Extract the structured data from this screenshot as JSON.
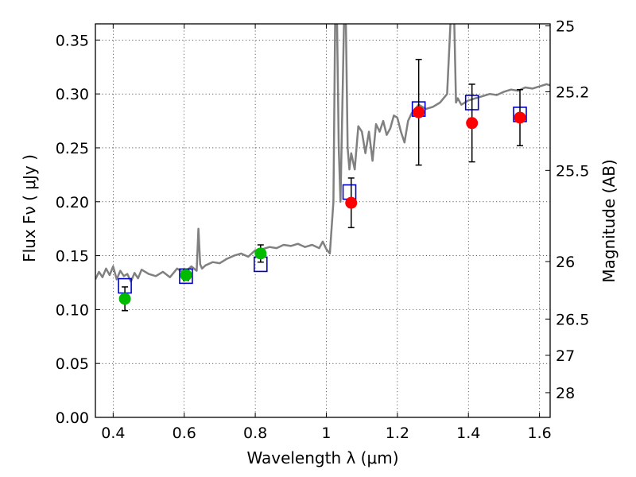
{
  "chart_data": {
    "type": "scatter",
    "xlabel": "Wavelength  λ (μm)",
    "ylabel": "Flux  Fν ( μJy )",
    "y2label": "Magnitude (AB)",
    "xlim": [
      0.35,
      1.63
    ],
    "ylim": [
      0.0,
      0.365
    ],
    "grid": true,
    "xticks": [
      {
        "value": 0.4,
        "label": "0.4"
      },
      {
        "value": 0.6,
        "label": "0.6"
      },
      {
        "value": 0.8,
        "label": "0.8"
      },
      {
        "value": 1.0,
        "label": "1"
      },
      {
        "value": 1.2,
        "label": "1.2"
      },
      {
        "value": 1.4,
        "label": "1.4"
      },
      {
        "value": 1.6,
        "label": "1.6"
      }
    ],
    "yticks": [
      {
        "value": 0.0,
        "label": "0.00"
      },
      {
        "value": 0.05,
        "label": "0.05"
      },
      {
        "value": 0.1,
        "label": "0.10"
      },
      {
        "value": 0.15,
        "label": "0.15"
      },
      {
        "value": 0.2,
        "label": "0.20"
      },
      {
        "value": 0.25,
        "label": "0.25"
      },
      {
        "value": 0.3,
        "label": "0.30"
      },
      {
        "value": 0.35,
        "label": "0.35"
      }
    ],
    "y2ticks": [
      {
        "value": 25,
        "label": "25"
      },
      {
        "value": 25.2,
        "label": "25.2"
      },
      {
        "value": 25.5,
        "label": "25.5"
      },
      {
        "value": 26,
        "label": "26"
      },
      {
        "value": 26.5,
        "label": "26.5"
      },
      {
        "value": 27,
        "label": "27"
      },
      {
        "value": 28,
        "label": "28"
      }
    ],
    "template_spectrum": {
      "color": "#808080",
      "x": [
        0.35,
        0.36,
        0.37,
        0.38,
        0.39,
        0.4,
        0.41,
        0.42,
        0.43,
        0.44,
        0.45,
        0.46,
        0.47,
        0.48,
        0.5,
        0.52,
        0.54,
        0.56,
        0.58,
        0.6,
        0.62,
        0.635,
        0.64,
        0.645,
        0.65,
        0.66,
        0.68,
        0.7,
        0.72,
        0.74,
        0.76,
        0.78,
        0.8,
        0.82,
        0.84,
        0.86,
        0.88,
        0.9,
        0.92,
        0.94,
        0.96,
        0.98,
        0.99,
        1.0,
        1.01,
        1.02,
        1.025,
        1.03,
        1.035,
        1.04,
        1.05,
        1.055,
        1.06,
        1.065,
        1.07,
        1.08,
        1.09,
        1.1,
        1.11,
        1.12,
        1.13,
        1.14,
        1.15,
        1.16,
        1.17,
        1.18,
        1.19,
        1.2,
        1.21,
        1.22,
        1.23,
        1.24,
        1.26,
        1.28,
        1.3,
        1.32,
        1.34,
        1.35,
        1.355,
        1.36,
        1.365,
        1.37,
        1.38,
        1.4,
        1.42,
        1.44,
        1.46,
        1.48,
        1.5,
        1.52,
        1.54,
        1.56,
        1.58,
        1.6,
        1.62,
        1.63
      ],
      "y": [
        0.128,
        0.135,
        0.13,
        0.138,
        0.132,
        0.14,
        0.128,
        0.136,
        0.131,
        0.133,
        0.126,
        0.134,
        0.129,
        0.137,
        0.133,
        0.131,
        0.135,
        0.13,
        0.138,
        0.134,
        0.14,
        0.136,
        0.175,
        0.142,
        0.138,
        0.141,
        0.144,
        0.143,
        0.147,
        0.15,
        0.152,
        0.149,
        0.155,
        0.156,
        0.158,
        0.157,
        0.16,
        0.159,
        0.161,
        0.158,
        0.16,
        0.157,
        0.163,
        0.156,
        0.152,
        0.2,
        0.37,
        0.37,
        0.25,
        0.2,
        0.37,
        0.37,
        0.25,
        0.23,
        0.245,
        0.23,
        0.27,
        0.265,
        0.245,
        0.265,
        0.238,
        0.272,
        0.265,
        0.275,
        0.262,
        0.268,
        0.28,
        0.278,
        0.265,
        0.255,
        0.275,
        0.282,
        0.29,
        0.286,
        0.288,
        0.292,
        0.3,
        0.37,
        0.37,
        0.37,
        0.292,
        0.296,
        0.29,
        0.294,
        0.296,
        0.298,
        0.3,
        0.299,
        0.302,
        0.304,
        0.303,
        0.306,
        0.305,
        0.307,
        0.309,
        0.308
      ]
    },
    "model_points": {
      "color": "#0000cc",
      "x": [
        0.433,
        0.605,
        0.815,
        1.065,
        1.26,
        1.41,
        1.545
      ],
      "y": [
        0.122,
        0.131,
        0.142,
        0.209,
        0.286,
        0.292,
        0.281
      ]
    },
    "observed_optical": {
      "color": "#00bb00",
      "x": [
        0.433,
        0.605,
        0.815
      ],
      "y": [
        0.11,
        0.132,
        0.152
      ],
      "yerr": [
        0.011,
        0.005,
        0.008
      ]
    },
    "observed_nir": {
      "color": "#ff0000",
      "x": [
        1.07,
        1.26,
        1.41,
        1.545
      ],
      "y": [
        0.199,
        0.283,
        0.273,
        0.278
      ],
      "yerr": [
        0.023,
        0.049,
        0.036,
        0.026
      ]
    }
  }
}
